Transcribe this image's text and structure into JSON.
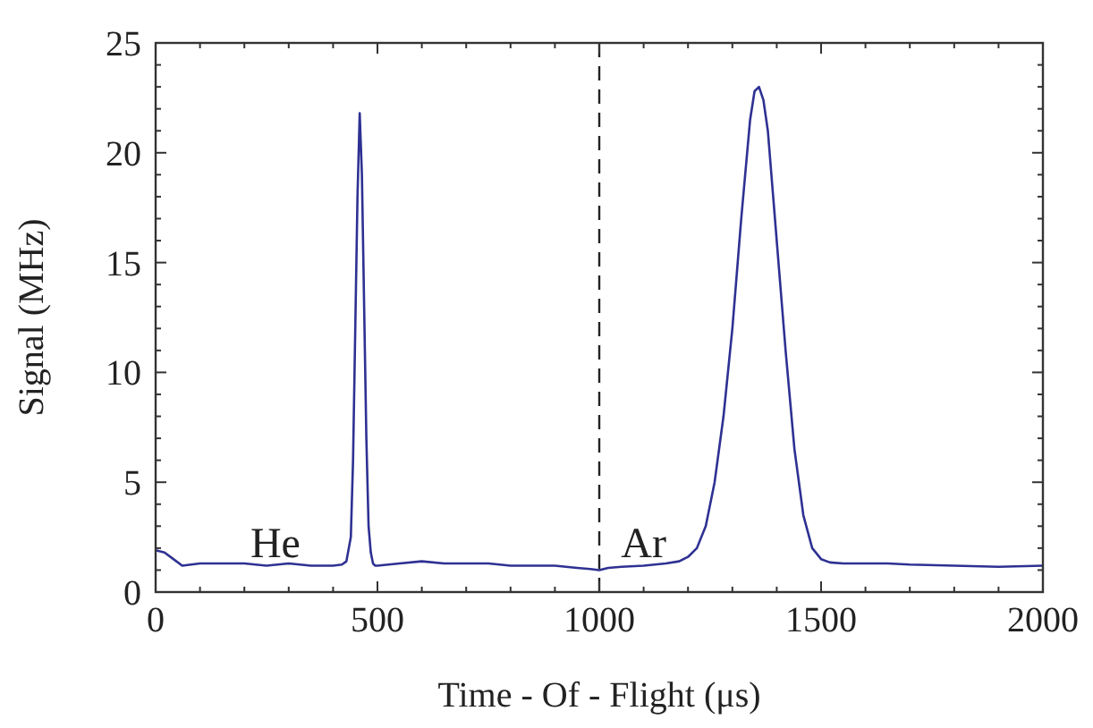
{
  "chart_data": {
    "type": "line",
    "xlabel": "Time - Of - Flight  (μs)",
    "ylabel": "Signal (MHz)",
    "xlim": [
      0,
      2000
    ],
    "ylim": [
      0,
      25
    ],
    "xticks": [
      0,
      500,
      1000,
      1500,
      2000
    ],
    "yticks": [
      0,
      5,
      10,
      15,
      20,
      25
    ],
    "grid": false,
    "ref_lines": [
      {
        "axis": "x",
        "value": 1000,
        "line_style": "dashed",
        "color": "#222222"
      }
    ],
    "annotations": [
      {
        "text": "He",
        "x": 270,
        "y": 1.6
      },
      {
        "text": "Ar",
        "x": 1100,
        "y": 1.6
      }
    ],
    "series": [
      {
        "color": "#2e3192",
        "x": [
          0,
          20,
          40,
          60,
          100,
          150,
          200,
          250,
          300,
          350,
          400,
          420,
          430,
          440,
          445,
          450,
          455,
          460,
          465,
          470,
          475,
          480,
          485,
          490,
          495,
          500,
          550,
          600,
          650,
          700,
          750,
          800,
          850,
          900,
          950,
          980,
          1000,
          1020,
          1050,
          1100,
          1150,
          1180,
          1200,
          1220,
          1240,
          1260,
          1280,
          1300,
          1320,
          1340,
          1350,
          1360,
          1370,
          1380,
          1400,
          1420,
          1440,
          1460,
          1480,
          1500,
          1520,
          1550,
          1600,
          1650,
          1700,
          1800,
          1900,
          2000
        ],
        "values": [
          1.9,
          1.8,
          1.5,
          1.2,
          1.3,
          1.3,
          1.3,
          1.2,
          1.3,
          1.2,
          1.2,
          1.25,
          1.4,
          2.5,
          6,
          12,
          18,
          21.8,
          19,
          13,
          7,
          3,
          1.8,
          1.3,
          1.2,
          1.2,
          1.3,
          1.4,
          1.3,
          1.3,
          1.3,
          1.2,
          1.2,
          1.2,
          1.1,
          1.05,
          1.0,
          1.1,
          1.15,
          1.2,
          1.3,
          1.4,
          1.6,
          2,
          3,
          5,
          8,
          12,
          17,
          21.5,
          22.8,
          23,
          22.4,
          21,
          16,
          11,
          6.5,
          3.5,
          2,
          1.5,
          1.35,
          1.3,
          1.3,
          1.3,
          1.25,
          1.2,
          1.15,
          1.2
        ]
      }
    ]
  }
}
